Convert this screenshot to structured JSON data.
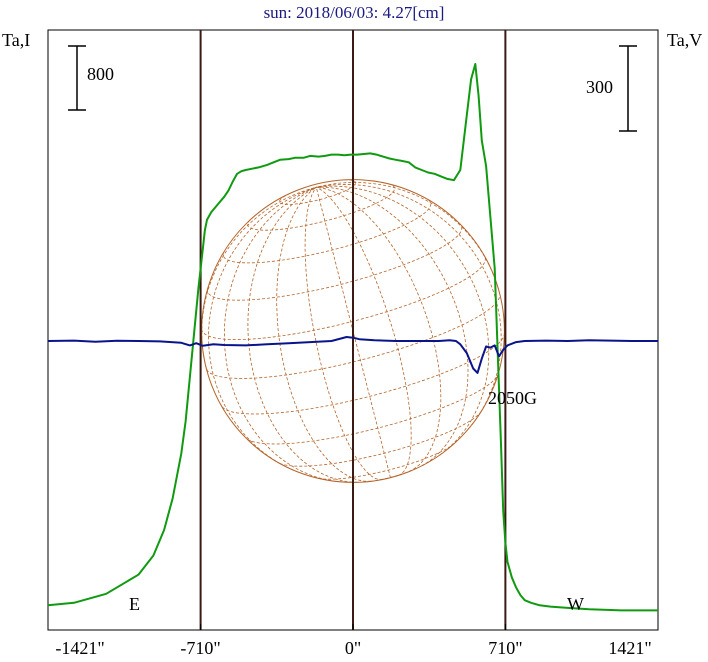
{
  "chart_data": {
    "type": "line",
    "title": "sun: 2018/06/03: 4.27[cm]",
    "ylabel_left": "Ta,I",
    "ylabel_right": "Ta,V",
    "xlabel": "",
    "x_ticks": [
      "-1421\"",
      "-710\"",
      "0\"",
      "710\"",
      "1421\""
    ],
    "x_tick_values": [
      -1421,
      -710,
      0,
      710,
      1421
    ],
    "xlim": [
      -1421,
      1421
    ],
    "scale_bar_left": {
      "label": "800",
      "value": 800
    },
    "scale_bar_right": {
      "label": "300",
      "value": 300
    },
    "limb_markers": [
      {
        "label": "E",
        "x": -710
      },
      {
        "label": "W",
        "x": 710
      }
    ],
    "vertical_lines_x": [
      -710,
      0,
      710
    ],
    "annotation": {
      "text": "2050G",
      "x": 580
    },
    "ylim_left_I": [
      -40,
      3800
    ],
    "ylim_right_V": [
      -800,
      800
    ],
    "series": [
      {
        "name": "Ta,I",
        "color": "#109a10",
        "axis": "left",
        "x": [
          -1421,
          -1300,
          -1150,
          -1000,
          -930,
          -880,
          -840,
          -800,
          -780,
          -760,
          -740,
          -720,
          -700,
          -690,
          -680,
          -660,
          -640,
          -620,
          -600,
          -580,
          -560,
          -540,
          -520,
          -500,
          -470,
          -440,
          -400,
          -370,
          -340,
          -300,
          -270,
          -230,
          -200,
          -160,
          -130,
          -100,
          -70,
          -40,
          -10,
          20,
          50,
          80,
          110,
          140,
          170,
          200,
          230,
          260,
          290,
          320,
          350,
          380,
          410,
          440,
          470,
          500,
          530,
          550,
          570,
          585,
          600,
          620,
          640,
          660,
          675,
          690,
          700,
          710,
          720,
          740,
          760,
          780,
          800,
          830,
          870,
          920,
          1000,
          1100,
          1250,
          1421
        ],
        "values": [
          60,
          80,
          150,
          300,
          450,
          650,
          900,
          1250,
          1500,
          1850,
          2200,
          2550,
          2850,
          3000,
          3080,
          3140,
          3180,
          3220,
          3260,
          3310,
          3380,
          3440,
          3460,
          3470,
          3480,
          3490,
          3510,
          3530,
          3550,
          3555,
          3565,
          3565,
          3580,
          3575,
          3580,
          3590,
          3590,
          3585,
          3590,
          3590,
          3595,
          3600,
          3590,
          3575,
          3560,
          3550,
          3540,
          3530,
          3490,
          3470,
          3450,
          3440,
          3420,
          3400,
          3390,
          3470,
          3900,
          4180,
          4300,
          4050,
          3700,
          3500,
          3100,
          2700,
          2000,
          1300,
          800,
          550,
          400,
          280,
          200,
          140,
          100,
          80,
          60,
          50,
          40,
          30,
          20,
          20
        ]
      },
      {
        "name": "Ta,V",
        "color": "#0a148a",
        "axis": "right",
        "x": [
          -1421,
          -1300,
          -1200,
          -1100,
          -1000,
          -900,
          -800,
          -760,
          -730,
          -700,
          -650,
          -600,
          -500,
          -400,
          -300,
          -200,
          -100,
          -30,
          0,
          30,
          100,
          200,
          300,
          400,
          450,
          480,
          500,
          530,
          560,
          580,
          600,
          620,
          640,
          660,
          680,
          700,
          720,
          760,
          800,
          900,
          1000,
          1100,
          1200,
          1300,
          1421
        ],
        "values": [
          0,
          2,
          -3,
          1,
          0,
          -2,
          -8,
          -20,
          -10,
          -22,
          -15,
          -18,
          -20,
          -15,
          -10,
          -5,
          0,
          18,
          15,
          8,
          3,
          0,
          0,
          0,
          3,
          0,
          -15,
          -55,
          -125,
          -145,
          -80,
          -25,
          -30,
          -20,
          -70,
          -40,
          -20,
          -5,
          0,
          2,
          0,
          3,
          2,
          0,
          0
        ]
      }
    ]
  }
}
